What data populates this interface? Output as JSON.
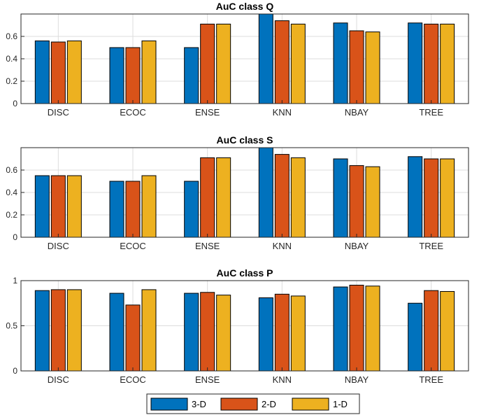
{
  "chart_data": [
    {
      "type": "bar",
      "title": "AuC class Q",
      "categories": [
        "DISC",
        "ECOC",
        "ENSE",
        "KNN",
        "NBAY",
        "TREE"
      ],
      "ylim": [
        0,
        0.8
      ],
      "yticks": [
        0,
        0.2,
        0.4,
        0.6
      ],
      "ytick_labels": [
        "0",
        "0.2",
        "0.4",
        "0.6"
      ],
      "grid": true,
      "series": [
        {
          "name": "3-D",
          "values": [
            0.56,
            0.5,
            0.5,
            0.8,
            0.72,
            0.72
          ]
        },
        {
          "name": "2-D",
          "values": [
            0.55,
            0.5,
            0.71,
            0.74,
            0.65,
            0.71
          ]
        },
        {
          "name": "1-D",
          "values": [
            0.56,
            0.56,
            0.71,
            0.71,
            0.64,
            0.71
          ]
        }
      ]
    },
    {
      "type": "bar",
      "title": "AuC class S",
      "categories": [
        "DISC",
        "ECOC",
        "ENSE",
        "KNN",
        "NBAY",
        "TREE"
      ],
      "ylim": [
        0,
        0.8
      ],
      "yticks": [
        0,
        0.2,
        0.4,
        0.6
      ],
      "ytick_labels": [
        "0",
        "0.2",
        "0.4",
        "0.6"
      ],
      "grid": true,
      "series": [
        {
          "name": "3-D",
          "values": [
            0.55,
            0.5,
            0.5,
            0.8,
            0.7,
            0.72
          ]
        },
        {
          "name": "2-D",
          "values": [
            0.55,
            0.5,
            0.71,
            0.74,
            0.64,
            0.7
          ]
        },
        {
          "name": "1-D",
          "values": [
            0.55,
            0.55,
            0.71,
            0.71,
            0.63,
            0.7
          ]
        }
      ]
    },
    {
      "type": "bar",
      "title": "AuC class P",
      "categories": [
        "DISC",
        "ECOC",
        "ENSE",
        "KNN",
        "NBAY",
        "TREE"
      ],
      "ylim": [
        0,
        1
      ],
      "yticks": [
        0,
        0.5,
        1
      ],
      "ytick_labels": [
        "0",
        "0.5",
        "1"
      ],
      "grid": true,
      "series": [
        {
          "name": "3-D",
          "values": [
            0.89,
            0.86,
            0.86,
            0.81,
            0.93,
            0.75
          ]
        },
        {
          "name": "2-D",
          "values": [
            0.9,
            0.73,
            0.87,
            0.85,
            0.95,
            0.89
          ]
        },
        {
          "name": "1-D",
          "values": [
            0.9,
            0.9,
            0.84,
            0.83,
            0.94,
            0.88
          ]
        }
      ]
    }
  ],
  "legend": {
    "position": "bottom-center",
    "items": [
      {
        "label": "3-D",
        "color": "#0072BD"
      },
      {
        "label": "2-D",
        "color": "#D95319"
      },
      {
        "label": "1-D",
        "color": "#EDB120"
      }
    ]
  }
}
